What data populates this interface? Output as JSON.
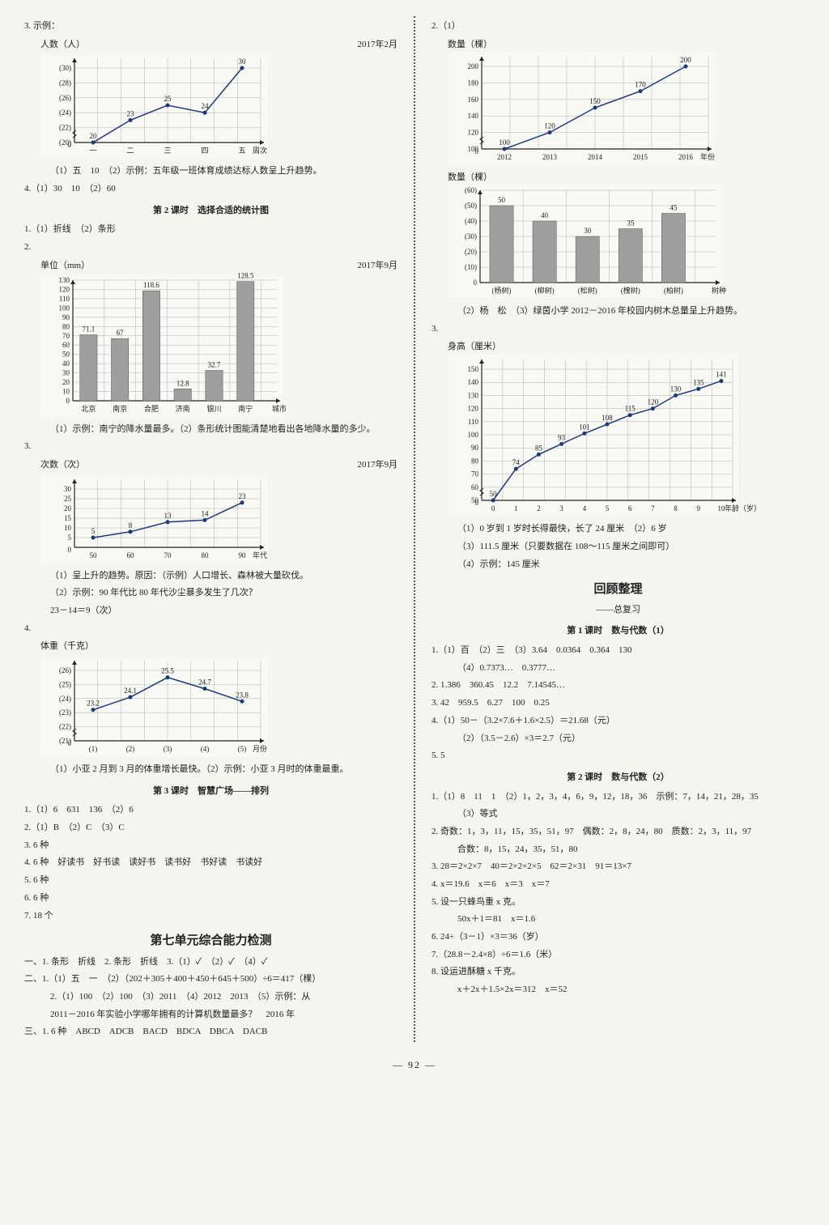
{
  "left": {
    "q3_label": "3. 示例：",
    "chart1": {
      "y_title": "人数（人）",
      "date": "2017年2月",
      "y_ticks": [
        "(30)",
        "(28)",
        "(26)",
        "(24)",
        "(22)",
        "(20)",
        "0"
      ],
      "x_ticks": [
        "一",
        "二",
        "三",
        "四",
        "五",
        "周次"
      ],
      "values": [
        20,
        23,
        25,
        24,
        30
      ],
      "value_labels": [
        "20",
        "23",
        "25",
        "24",
        "30"
      ],
      "line_color": "#1a3a7a",
      "grid_color": "#b0b0b0"
    },
    "q3_a1": "（1）五　10　（2）示例：五年级一班体育成绩达标人数呈上升趋势。",
    "q4_l1": "4.（1）30　10　（2）60",
    "sec2_title": "第 2 课时　选择合适的统计图",
    "s2_q1": "1.（1）折线　（2）条形",
    "s2_q2_label": "2.",
    "chart2": {
      "y_title": "单位（mm）",
      "date": "2017年9月",
      "y_ticks": [
        "130",
        "120",
        "110",
        "100",
        "90",
        "80",
        "70",
        "60",
        "50",
        "40",
        "30",
        "20",
        "10",
        "0"
      ],
      "x_ticks": [
        "北京",
        "南京",
        "合肥",
        "济南",
        "银川",
        "南宁",
        "城市"
      ],
      "values": [
        71.1,
        67,
        118.6,
        12.8,
        32.7,
        128.5
      ],
      "bar_color": "#9e9e9e",
      "grid_color": "#b0b0b0"
    },
    "s2_q2_a": "（1）示例：南宁的降水量最多。（2）条形统计图能清楚地看出各地降水量的多少。",
    "s2_q3_label": "3.",
    "chart3": {
      "y_title": "次数（次）",
      "date": "2017年9月",
      "y_ticks": [
        "30",
        "25",
        "20",
        "15",
        "10",
        "5",
        "0"
      ],
      "x_ticks": [
        "50",
        "60",
        "70",
        "80",
        "90",
        "年代"
      ],
      "values": [
        5,
        8,
        13,
        14,
        23
      ],
      "value_labels": [
        "5",
        "8",
        "13",
        "14",
        "23"
      ],
      "line_color": "#1a3a7a",
      "grid_color": "#b0b0b0"
    },
    "s2_q3_a1": "（1）呈上升的趋势。原因：（示例）人口增长、森林被大量砍伐。",
    "s2_q3_a2": "（2）示例：90 年代比 80 年代沙尘暴多发生了几次？",
    "s2_q3_a3": "23－14＝9（次）",
    "s2_q4_label": "4.",
    "chart4": {
      "y_title": "体重（千克）",
      "y_ticks": [
        "(26)",
        "(25)",
        "(24)",
        "(23)",
        "(22)",
        "(21)",
        "0"
      ],
      "x_ticks": [
        "(1)",
        "(2)",
        "(3)",
        "(4)",
        "(5)",
        "月份"
      ],
      "values": [
        23.2,
        24.1,
        25.5,
        24.7,
        23.8
      ],
      "value_labels": [
        "23.2",
        "24.1",
        "25.5",
        "24.7",
        "23.8"
      ],
      "line_color": "#1a3a7a",
      "grid_color": "#b0b0b0"
    },
    "s2_q4_a": "（1）小亚 2 月到 3 月的体重增长最快。（2）示例：小亚 3 月时的体重最重。",
    "sec3_title": "第 3 课时　智慧广场——排列",
    "s3_q1": "1.（1）6　631　136　（2）6",
    "s3_q2": "2.（1）B　（2）C　（3）C",
    "s3_q3": "3. 6 种",
    "s3_q4": "4. 6 种　好读书　好书读　读好书　读书好　书好读　书读好",
    "s3_q5": "5. 6 种",
    "s3_q6": "6. 6 种",
    "s3_q7": "7. 18 个",
    "unit_test_title": "第七单元综合能力检测",
    "ut_1": "一、1. 条形　折线　2. 条形　折线　3.（1）✓　（2）✓　（4）✓",
    "ut_2_1": "二、1.（1）五　一　（2）（202＋305＋400＋450＋645＋500）÷6＝417（棵）",
    "ut_2_2": "2.（1）100　（2）100　（3）2011　（4）2012　2013　（5）示例：从",
    "ut_2_3": "2011－2016 年实验小学哪年拥有的计算机数量最多？　2016 年",
    "ut_3": "三、1. 6 种　ABCD　ADCB　BACD　BDCA　DBCA　DACB"
  },
  "right": {
    "q2_label": "2.（1）",
    "chart5": {
      "y_title": "数量（棵）",
      "y_ticks": [
        "200",
        "180",
        "160",
        "140",
        "120",
        "100",
        "0"
      ],
      "x_ticks": [
        "2012",
        "2013",
        "2014",
        "2015",
        "2016",
        "年份"
      ],
      "values": [
        100,
        120,
        150,
        170,
        200
      ],
      "value_labels": [
        "100",
        "120",
        "150",
        "170",
        "200"
      ],
      "line_color": "#1a3a7a",
      "grid_color": "#b0b0b0"
    },
    "chart6": {
      "y_title": "数量（棵）",
      "y_ticks": [
        "(60)",
        "(50)",
        "(40)",
        "(30)",
        "(20)",
        "(10)",
        "0"
      ],
      "x_ticks": [
        "(杨树)",
        "(柳树)",
        "(松树)",
        "(槐树)",
        "(柏树)",
        "树种"
      ],
      "values": [
        50,
        40,
        30,
        35,
        45
      ],
      "bar_color": "#9e9e9e",
      "grid_color": "#b0b0b0"
    },
    "q2_a": "（2）杨　松　（3）绿茵小学 2012－2016 年校园内树木总量呈上升趋势。",
    "q3_label": "3.",
    "chart7": {
      "y_title": "身高（厘米）",
      "y_ticks": [
        "150",
        "140",
        "130",
        "120",
        "110",
        "100",
        "90",
        "80",
        "70",
        "60",
        "50",
        "0"
      ],
      "x_ticks": [
        "0",
        "1",
        "2",
        "3",
        "4",
        "5",
        "6",
        "7",
        "8",
        "9",
        "10",
        "年龄（岁）"
      ],
      "values": [
        50,
        74,
        85,
        93,
        101,
        108,
        115,
        120,
        130,
        135,
        141
      ],
      "value_labels": [
        "50",
        "74",
        "85",
        "93",
        "101",
        "108",
        "115",
        "120",
        "130",
        "135",
        "141"
      ],
      "line_color": "#1a3a7a",
      "grid_color": "#b0b0b0"
    },
    "q3_a1": "（1）0 岁到 1 岁时长得最快，长了 24 厘米　（2）6 岁",
    "q3_a2": "（3）111.5 厘米（只要数据在 108～115 厘米之间即可）",
    "q3_a3": "（4）示例：145 厘米",
    "review_title": "回顾整理",
    "review_sub": "——总复习",
    "r_sec1": "第 1 课时　数与代数（1）",
    "r1_q1": "1.（1）百　（2）三　（3）3.64　0.0364　0.364　130",
    "r1_q1b": "（4）0.7373…　0.3777…",
    "r1_q2": "2. 1.386　360.45　12.2　7.14545…",
    "r1_q3": "3. 42　959.5　6.27　100　0.25",
    "r1_q4": "4.（1）50－（3.2×7.6＋1.6×2.5）＝21.68（元）",
    "r1_q4b": "（2）（3.5－2.6）×3＝2.7（元）",
    "r1_q5": "5. 5",
    "r_sec2": "第 2 课时　数与代数（2）",
    "r2_q1": "1.（1）8　11　1　（2）1，2，3，4，6，9，12，18，36　示例：7，14，21，28，35",
    "r2_q1b": "（3）等式",
    "r2_q2": "2. 奇数：1，3，11，15，35，51，97　偶数：2，8，24，80　质数：2，3，11，97",
    "r2_q2b": "合数：8，15，24，35，51，80",
    "r2_q3": "3. 28＝2×2×7　40＝2×2×2×5　62＝2×31　91＝13×7",
    "r2_q4": "4. x＝19.6　x＝6　x＝3　x＝7",
    "r2_q5": "5. 设一只蜂鸟重 x 克。",
    "r2_q5b": "50x＋1＝81　x＝1.6",
    "r2_q6": "6. 24÷（3－1）×3＝36（岁）",
    "r2_q7": "7.（28.8－2.4×8）÷6＝1.6（米）",
    "r2_q8": "8. 设运进酥糖 x 千克。",
    "r2_q8b": "x＋2x＋1.5×2x＝312　x＝52"
  },
  "page_number": "92"
}
